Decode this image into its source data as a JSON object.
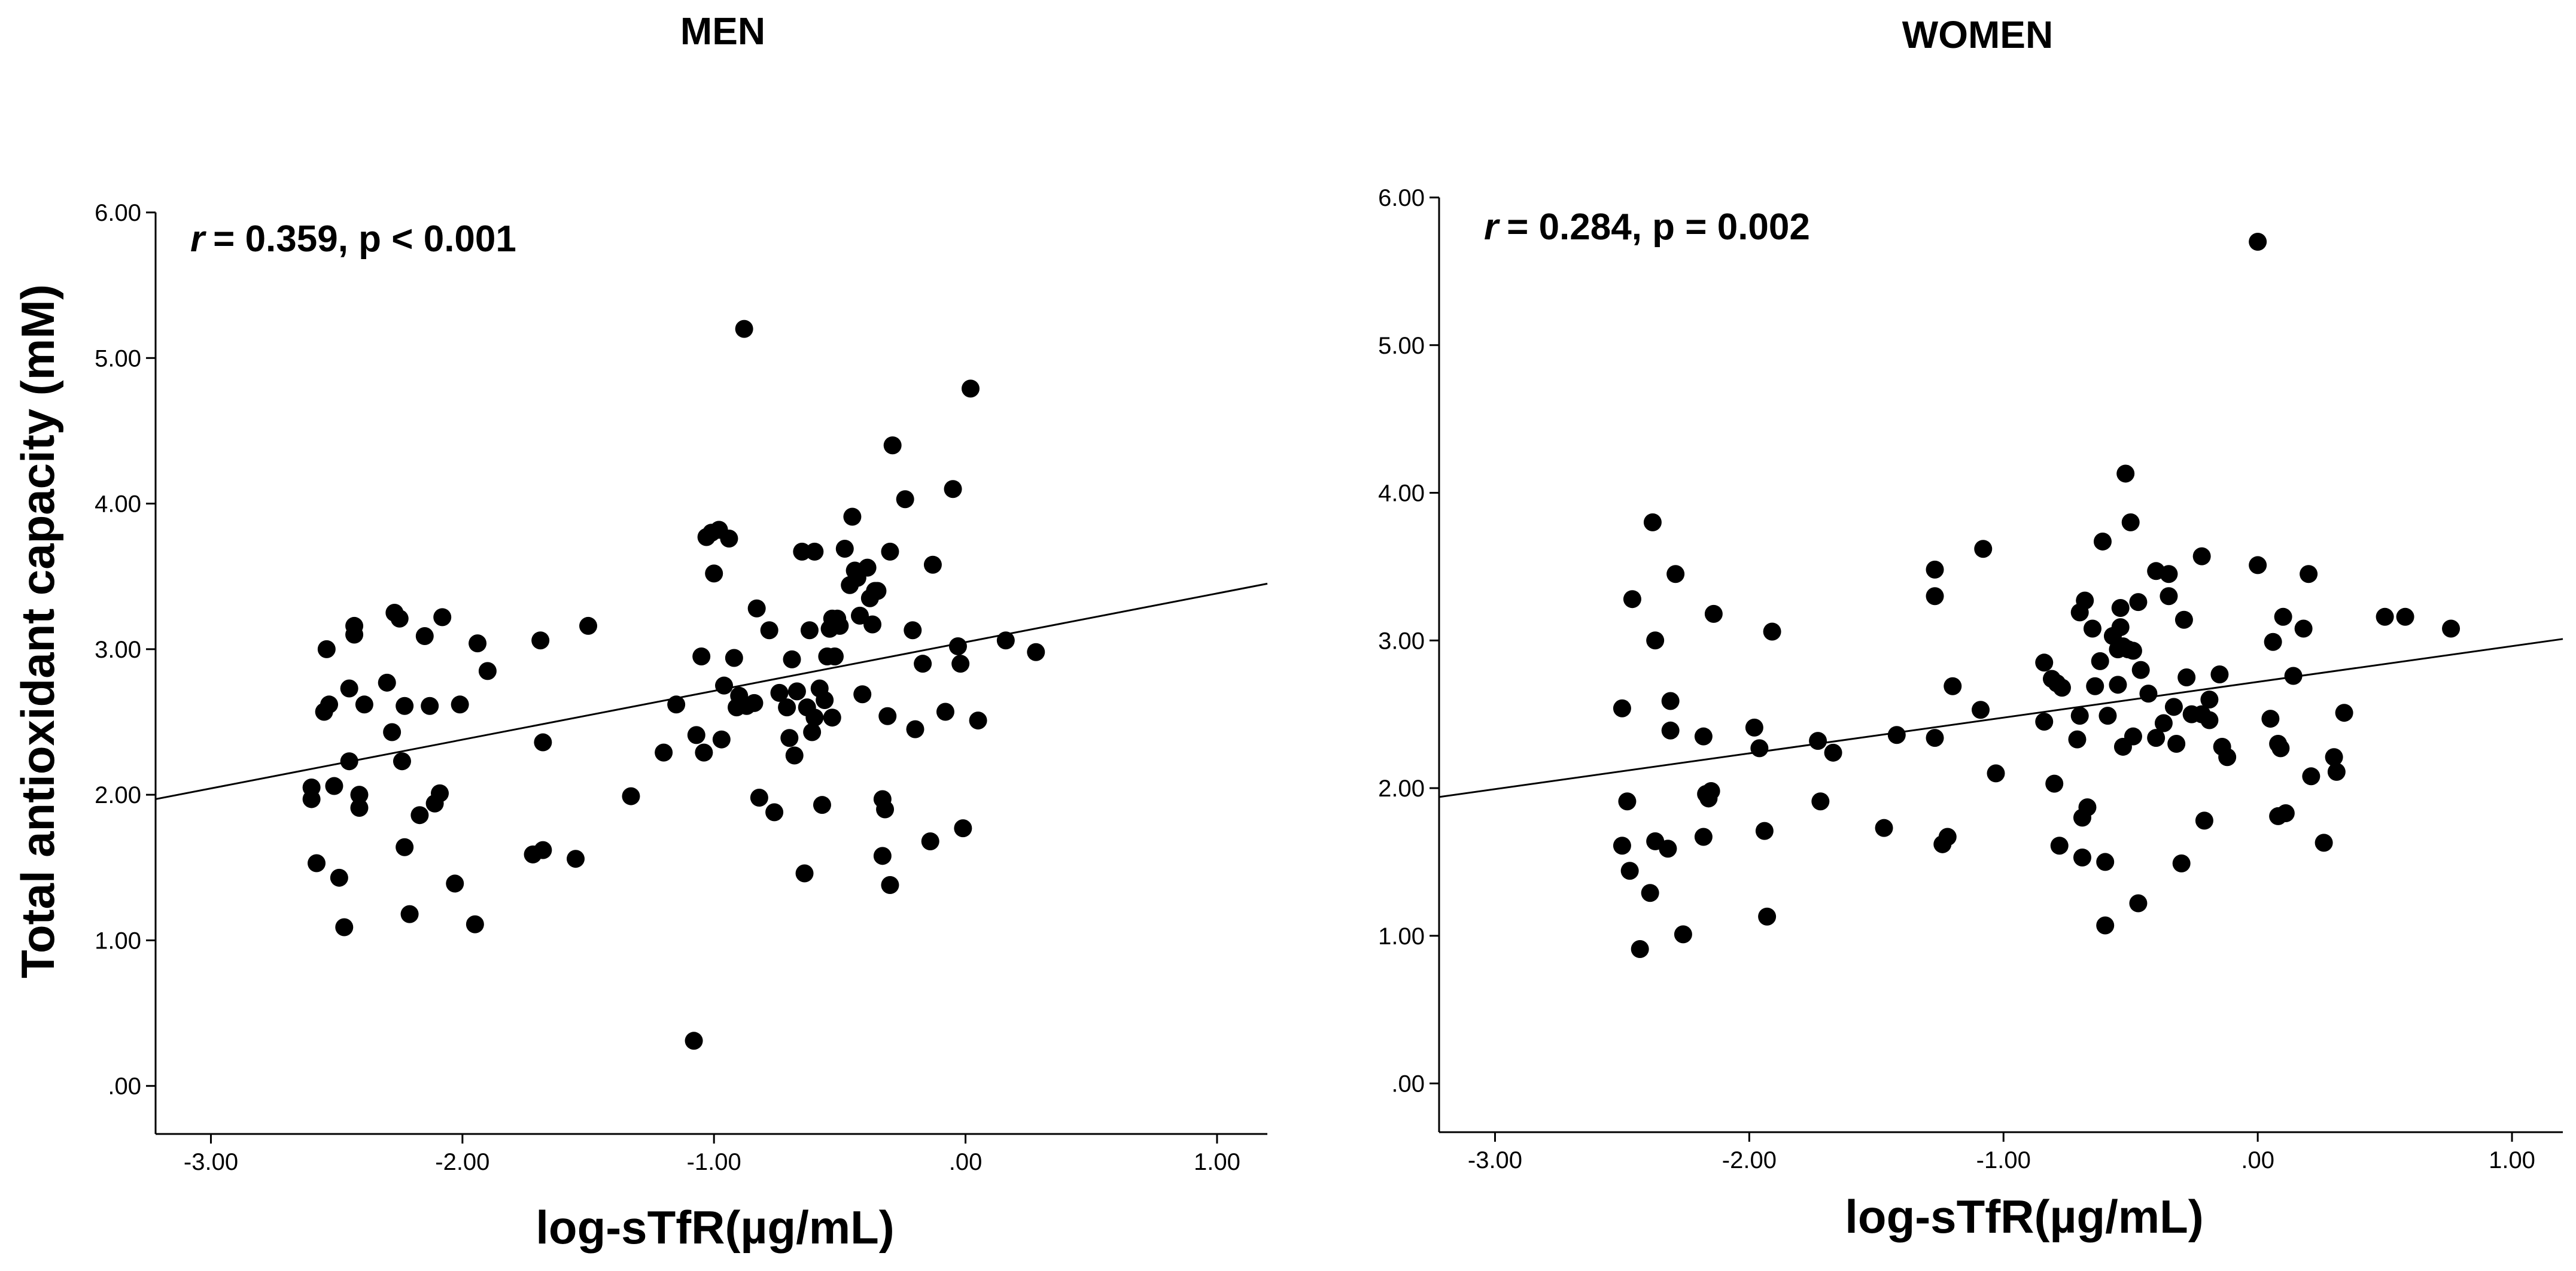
{
  "colors": {
    "point": "#000000",
    "axis": "#000000",
    "fit_line": "#000000",
    "background": "#ffffff"
  },
  "y_axis_label": "Total antioxidant capacity (mM)",
  "chart_data": [
    {
      "type": "scatter",
      "title": "MEN",
      "xlabel": "log-sTfR(µg/mL)",
      "ylabel": "Total antioxidant capacity (mM)",
      "xlim": [
        -3.22,
        1.2
      ],
      "ylim": [
        -0.33,
        6.0
      ],
      "x_ticks": [
        -3,
        -2,
        -1,
        0,
        1
      ],
      "x_tick_labels": [
        "-3.00",
        "-2.00",
        "-1.00",
        ".00",
        "1.00"
      ],
      "y_ticks": [
        0,
        1,
        2,
        3,
        4,
        5,
        6
      ],
      "y_tick_labels": [
        ".00",
        "1.00",
        "2.00",
        "3.00",
        "4.00",
        "5.00",
        "6.00"
      ],
      "annotation": {
        "r_symbol": "r",
        "text": "=  0.359,  p < 0.001"
      },
      "fit_line": {
        "x": [
          -3.22,
          1.2
        ],
        "y": [
          1.97,
          3.45
        ]
      },
      "points": [
        [
          -2.6,
          1.97
        ],
        [
          -2.6,
          2.05
        ],
        [
          -2.58,
          1.53
        ],
        [
          -2.55,
          2.57
        ],
        [
          -2.54,
          3.0
        ],
        [
          -2.53,
          2.62
        ],
        [
          -2.51,
          2.06
        ],
        [
          -2.49,
          1.43
        ],
        [
          -2.47,
          1.09
        ],
        [
          -2.45,
          2.73
        ],
        [
          -2.45,
          2.23
        ],
        [
          -2.43,
          3.1
        ],
        [
          -2.43,
          3.16
        ],
        [
          -2.41,
          2.0
        ],
        [
          -2.41,
          1.91
        ],
        [
          -2.39,
          2.62
        ],
        [
          -2.3,
          2.77
        ],
        [
          -2.28,
          2.43
        ],
        [
          -2.27,
          3.25
        ],
        [
          -2.25,
          3.21
        ],
        [
          -2.24,
          2.23
        ],
        [
          -2.23,
          2.61
        ],
        [
          -2.23,
          1.64
        ],
        [
          -2.21,
          1.18
        ],
        [
          -2.17,
          1.86
        ],
        [
          -2.15,
          3.09
        ],
        [
          -2.13,
          2.61
        ],
        [
          -2.11,
          1.94
        ],
        [
          -2.09,
          2.01
        ],
        [
          -2.08,
          3.22
        ],
        [
          -2.03,
          1.39
        ],
        [
          -2.01,
          2.62
        ],
        [
          -1.95,
          1.11
        ],
        [
          -1.94,
          3.04
        ],
        [
          -1.9,
          2.85
        ],
        [
          -1.72,
          1.59
        ],
        [
          -1.69,
          3.06
        ],
        [
          -1.68,
          2.36
        ],
        [
          -1.68,
          1.62
        ],
        [
          -1.55,
          1.56
        ],
        [
          -1.5,
          3.16
        ],
        [
          -1.33,
          1.99
        ],
        [
          -1.2,
          2.29
        ],
        [
          -1.15,
          2.62
        ],
        [
          -1.08,
          0.31
        ],
        [
          -1.07,
          2.41
        ],
        [
          -1.05,
          2.95
        ],
        [
          -1.04,
          2.29
        ],
        [
          -1.03,
          3.77
        ],
        [
          -1.01,
          3.8
        ],
        [
          -1.0,
          3.52
        ],
        [
          -0.98,
          3.82
        ],
        [
          -0.97,
          2.38
        ],
        [
          -0.96,
          2.75
        ],
        [
          -0.94,
          3.76
        ],
        [
          -0.92,
          2.94
        ],
        [
          -0.91,
          2.6
        ],
        [
          -0.9,
          2.68
        ],
        [
          -0.88,
          5.2
        ],
        [
          -0.87,
          2.61
        ],
        [
          -0.84,
          2.63
        ],
        [
          -0.83,
          3.28
        ],
        [
          -0.82,
          1.98
        ],
        [
          -0.78,
          3.13
        ],
        [
          -0.76,
          1.88
        ],
        [
          -0.74,
          2.7
        ],
        [
          -0.71,
          2.6
        ],
        [
          -0.7,
          2.39
        ],
        [
          -0.69,
          2.93
        ],
        [
          -0.68,
          2.27
        ],
        [
          -0.67,
          2.71
        ],
        [
          -0.65,
          3.67
        ],
        [
          -0.64,
          1.46
        ],
        [
          -0.63,
          2.6
        ],
        [
          -0.62,
          3.13
        ],
        [
          -0.61,
          2.43
        ],
        [
          -0.6,
          3.67
        ],
        [
          -0.6,
          2.53
        ],
        [
          -0.58,
          2.73
        ],
        [
          -0.57,
          1.93
        ],
        [
          -0.56,
          2.65
        ],
        [
          -0.55,
          2.95
        ],
        [
          -0.54,
          3.14
        ],
        [
          -0.53,
          3.21
        ],
        [
          -0.53,
          2.53
        ],
        [
          -0.52,
          2.95
        ],
        [
          -0.51,
          3.21
        ],
        [
          -0.5,
          3.16
        ],
        [
          -0.48,
          3.69
        ],
        [
          -0.46,
          3.44
        ],
        [
          -0.45,
          3.91
        ],
        [
          -0.44,
          3.54
        ],
        [
          -0.43,
          3.49
        ],
        [
          -0.42,
          3.23
        ],
        [
          -0.41,
          2.69
        ],
        [
          -0.39,
          3.56
        ],
        [
          -0.38,
          3.35
        ],
        [
          -0.37,
          3.17
        ],
        [
          -0.36,
          3.4
        ],
        [
          -0.35,
          3.4
        ],
        [
          -0.33,
          1.58
        ],
        [
          -0.33,
          1.97
        ],
        [
          -0.32,
          1.9
        ],
        [
          -0.31,
          2.54
        ],
        [
          -0.3,
          3.67
        ],
        [
          -0.3,
          1.38
        ],
        [
          -0.29,
          4.4
        ],
        [
          -0.24,
          4.03
        ],
        [
          -0.21,
          3.13
        ],
        [
          -0.2,
          2.45
        ],
        [
          -0.17,
          2.9
        ],
        [
          -0.14,
          1.68
        ],
        [
          -0.13,
          3.58
        ],
        [
          -0.08,
          2.57
        ],
        [
          -0.05,
          4.1
        ],
        [
          -0.03,
          3.02
        ],
        [
          -0.02,
          2.9
        ],
        [
          -0.01,
          1.77
        ],
        [
          0.02,
          4.79
        ],
        [
          0.05,
          2.51
        ],
        [
          0.16,
          3.06
        ],
        [
          0.28,
          2.98
        ]
      ]
    },
    {
      "type": "scatter",
      "title": "WOMEN",
      "xlabel": "log-sTfR(µg/mL)",
      "ylabel": "",
      "xlim": [
        -3.22,
        1.2
      ],
      "ylim": [
        -0.33,
        6.0
      ],
      "x_ticks": [
        -3,
        -2,
        -1,
        0,
        1
      ],
      "x_tick_labels": [
        "-3.00",
        "-2.00",
        "-1.00",
        ".00",
        "1.00"
      ],
      "y_ticks": [
        0,
        1,
        2,
        3,
        4,
        5,
        6
      ],
      "y_tick_labels": [
        ".00",
        "1.00",
        "2.00",
        "3.00",
        "4.00",
        "5.00",
        "6.00"
      ],
      "annotation": {
        "r_symbol": "r",
        "text": "= 0.284,  p = 0.002"
      },
      "fit_line": {
        "x": [
          -3.22,
          1.2
        ],
        "y": [
          1.94,
          3.01
        ]
      },
      "points": [
        [
          -2.5,
          2.54
        ],
        [
          -2.5,
          1.61
        ],
        [
          -2.48,
          1.91
        ],
        [
          -2.47,
          1.44
        ],
        [
          -2.46,
          3.28
        ],
        [
          -2.43,
          0.91
        ],
        [
          -2.39,
          1.29
        ],
        [
          -2.38,
          3.8
        ],
        [
          -2.37,
          3.0
        ],
        [
          -2.37,
          1.64
        ],
        [
          -2.32,
          1.59
        ],
        [
          -2.31,
          2.59
        ],
        [
          -2.31,
          2.39
        ],
        [
          -2.29,
          3.45
        ],
        [
          -2.26,
          1.01
        ],
        [
          -2.18,
          2.35
        ],
        [
          -2.18,
          1.67
        ],
        [
          -2.17,
          1.96
        ],
        [
          -2.16,
          1.93
        ],
        [
          -2.15,
          1.98
        ],
        [
          -2.14,
          3.18
        ],
        [
          -1.98,
          2.41
        ],
        [
          -1.96,
          2.27
        ],
        [
          -1.94,
          1.71
        ],
        [
          -1.93,
          1.13
        ],
        [
          -1.91,
          3.06
        ],
        [
          -1.73,
          2.32
        ],
        [
          -1.72,
          1.91
        ],
        [
          -1.67,
          2.24
        ],
        [
          -1.47,
          1.73
        ],
        [
          -1.42,
          2.36
        ],
        [
          -1.27,
          3.3
        ],
        [
          -1.27,
          3.48
        ],
        [
          -1.27,
          2.34
        ],
        [
          -1.24,
          1.62
        ],
        [
          -1.22,
          1.67
        ],
        [
          -1.2,
          2.69
        ],
        [
          -1.09,
          2.53
        ],
        [
          -1.08,
          3.62
        ],
        [
          -1.03,
          2.1
        ],
        [
          -0.84,
          2.85
        ],
        [
          -0.84,
          2.45
        ],
        [
          -0.81,
          2.74
        ],
        [
          -0.8,
          2.03
        ],
        [
          -0.79,
          2.71
        ],
        [
          -0.78,
          1.61
        ],
        [
          -0.77,
          2.68
        ],
        [
          -0.71,
          2.33
        ],
        [
          -0.7,
          2.49
        ],
        [
          -0.7,
          3.19
        ],
        [
          -0.69,
          1.8
        ],
        [
          -0.69,
          1.53
        ],
        [
          -0.68,
          3.27
        ],
        [
          -0.67,
          1.87
        ],
        [
          -0.65,
          3.08
        ],
        [
          -0.64,
          2.69
        ],
        [
          -0.62,
          2.86
        ],
        [
          -0.61,
          3.67
        ],
        [
          -0.6,
          1.5
        ],
        [
          -0.6,
          1.07
        ],
        [
          -0.59,
          2.49
        ],
        [
          -0.57,
          3.03
        ],
        [
          -0.55,
          2.7
        ],
        [
          -0.55,
          2.94
        ],
        [
          -0.54,
          3.09
        ],
        [
          -0.54,
          3.22
        ],
        [
          -0.53,
          2.96
        ],
        [
          -0.53,
          2.28
        ],
        [
          -0.52,
          4.13
        ],
        [
          -0.51,
          2.94
        ],
        [
          -0.5,
          3.8
        ],
        [
          -0.49,
          2.93
        ],
        [
          -0.49,
          2.35
        ],
        [
          -0.47,
          1.22
        ],
        [
          -0.47,
          3.26
        ],
        [
          -0.46,
          2.8
        ],
        [
          -0.43,
          2.64
        ],
        [
          -0.4,
          3.47
        ],
        [
          -0.4,
          2.34
        ],
        [
          -0.37,
          2.44
        ],
        [
          -0.35,
          3.3
        ],
        [
          -0.35,
          3.45
        ],
        [
          -0.33,
          2.55
        ],
        [
          -0.32,
          2.3
        ],
        [
          -0.3,
          1.49
        ],
        [
          -0.29,
          3.14
        ],
        [
          -0.28,
          2.75
        ],
        [
          -0.26,
          2.5
        ],
        [
          -0.22,
          2.5
        ],
        [
          -0.22,
          3.57
        ],
        [
          -0.21,
          1.78
        ],
        [
          -0.19,
          2.46
        ],
        [
          -0.19,
          2.6
        ],
        [
          -0.15,
          2.77
        ],
        [
          -0.14,
          2.28
        ],
        [
          -0.12,
          2.21
        ],
        [
          0.0,
          3.51
        ],
        [
          0.0,
          5.7
        ],
        [
          0.05,
          2.47
        ],
        [
          0.06,
          2.99
        ],
        [
          0.08,
          2.3
        ],
        [
          0.08,
          1.81
        ],
        [
          0.09,
          2.27
        ],
        [
          0.1,
          3.16
        ],
        [
          0.11,
          1.83
        ],
        [
          0.14,
          2.76
        ],
        [
          0.18,
          3.08
        ],
        [
          0.2,
          3.45
        ],
        [
          0.21,
          2.08
        ],
        [
          0.26,
          1.63
        ],
        [
          0.3,
          2.21
        ],
        [
          0.31,
          2.11
        ],
        [
          0.34,
          2.51
        ],
        [
          0.5,
          3.16
        ],
        [
          0.58,
          3.16
        ],
        [
          0.76,
          3.08
        ]
      ]
    }
  ]
}
